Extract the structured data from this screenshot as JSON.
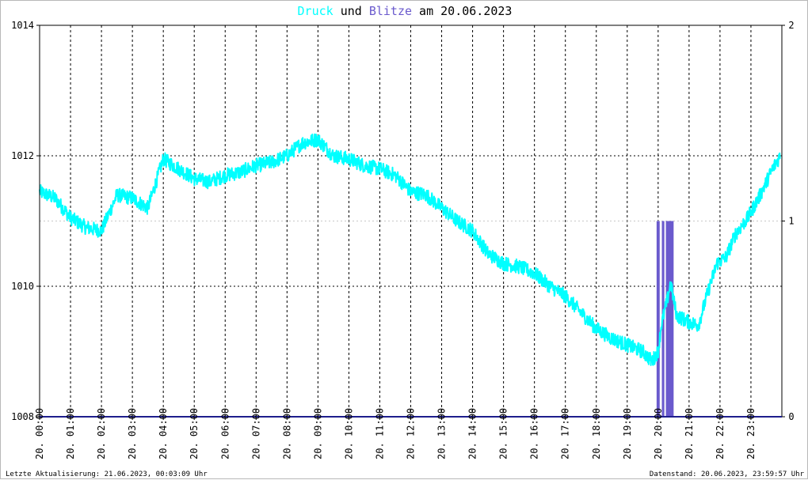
{
  "title": {
    "part1": "Druck",
    "part2": " und ",
    "part3": "Blitze",
    "part4": " am 20.06.2023",
    "color_druck": "#00ffff",
    "color_blitze": "#6a5acd"
  },
  "footer": {
    "left": "Letzte Aktualisierung: 21.06.2023, 00:03:09 Uhr",
    "right": "Datenstand: 20.06.2023, 23:59:57 Uhr"
  },
  "chart_data": {
    "type": "line",
    "grid": true,
    "x_tick_labels": [
      "20. 00:00",
      "20. 01:00",
      "20. 02:00",
      "20. 03:00",
      "20. 04:00",
      "20. 05:00",
      "20. 06:00",
      "20. 07:00",
      "20. 08:00",
      "20. 09:00",
      "20. 10:00",
      "20. 11:00",
      "20. 12:00",
      "20. 13:00",
      "20. 14:00",
      "20. 15:00",
      "20. 16:00",
      "20. 17:00",
      "20. 18:00",
      "20. 19:00",
      "20. 20:00",
      "20. 21:00",
      "20. 22:00",
      "20. 23:00"
    ],
    "x_range_hours": [
      0,
      24
    ],
    "y_left": {
      "ticks": [
        1008,
        1010,
        1012,
        1014
      ],
      "range": [
        1008,
        1014
      ]
    },
    "y_right": {
      "ticks": [
        0,
        1,
        2
      ],
      "range": [
        0,
        2
      ]
    },
    "series": [
      {
        "name": "Druck",
        "axis": "left",
        "color": "#00ffff",
        "x": [
          0,
          0.5,
          1,
          1.5,
          2,
          2.5,
          3,
          3.5,
          4,
          4.5,
          5,
          5.5,
          6,
          6.5,
          7,
          7.5,
          8,
          8.5,
          9,
          9.5,
          10,
          10.5,
          11,
          11.5,
          12,
          12.5,
          13,
          13.5,
          14,
          14.5,
          15,
          15.5,
          16,
          16.5,
          17,
          17.5,
          18,
          18.5,
          19,
          19.5,
          19.8,
          20,
          20.1,
          20.3,
          20.4,
          20.5,
          20.6,
          21,
          21.3,
          21.6,
          21.9,
          22.2,
          22.5,
          22.9,
          23.3,
          23.7,
          23.95
        ],
        "y": [
          1011.45,
          1011.35,
          1011.05,
          1010.9,
          1010.85,
          1011.4,
          1011.35,
          1011.2,
          1011.95,
          1011.8,
          1011.65,
          1011.6,
          1011.7,
          1011.75,
          1011.85,
          1011.9,
          1012.0,
          1012.2,
          1012.25,
          1012.0,
          1011.95,
          1011.85,
          1011.8,
          1011.7,
          1011.45,
          1011.4,
          1011.2,
          1011.0,
          1010.85,
          1010.5,
          1010.35,
          1010.3,
          1010.2,
          1010.0,
          1009.85,
          1009.6,
          1009.35,
          1009.2,
          1009.1,
          1009.0,
          1008.85,
          1009.0,
          1009.4,
          1009.8,
          1010.05,
          1009.8,
          1009.55,
          1009.45,
          1009.4,
          1009.9,
          1010.35,
          1010.45,
          1010.8,
          1011.05,
          1011.4,
          1011.8,
          1012.0
        ]
      },
      {
        "name": "Blitze",
        "axis": "right",
        "color": "#6a5acd",
        "type": "bar",
        "bars": [
          {
            "start": 19.95,
            "end": 20.05,
            "value": 1
          },
          {
            "start": 20.12,
            "end": 20.2,
            "value": 1
          },
          {
            "start": 20.25,
            "end": 20.5,
            "value": 1
          }
        ]
      }
    ]
  }
}
